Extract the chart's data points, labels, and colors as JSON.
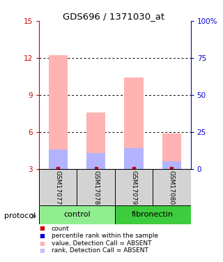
{
  "title": "GDS696 / 1371030_at",
  "samples": [
    "GSM17077",
    "GSM17078",
    "GSM17079",
    "GSM17080"
  ],
  "ylim_left": [
    3,
    15
  ],
  "ylim_right": [
    0,
    100
  ],
  "yticks_left": [
    3,
    6,
    9,
    12,
    15
  ],
  "yticks_right": [
    0,
    25,
    50,
    75,
    100
  ],
  "bar_bottom": 3,
  "pink_bar_tops": [
    12.2,
    7.6,
    10.4,
    5.9
  ],
  "blue_bar_tops": [
    4.6,
    4.3,
    4.7,
    3.6
  ],
  "pink_bar_color": "#ffb3b3",
  "blue_bar_color": "#b3b3ff",
  "red_marker_color": "#cc0000",
  "blue_marker_color": "#0000cc",
  "left_axis_color": "#cc0000",
  "right_axis_color": "#0000cc",
  "control_color": "#90ee90",
  "fibronectin_color": "#3dcc3d",
  "sample_box_color": "#d3d3d3",
  "bar_width": 0.5,
  "legend_items": [
    {
      "label": "count",
      "color": "#cc0000"
    },
    {
      "label": "percentile rank within the sample",
      "color": "#0000cc"
    },
    {
      "label": "value, Detection Call = ABSENT",
      "color": "#ffb3b3"
    },
    {
      "label": "rank, Detection Call = ABSENT",
      "color": "#c0c0ff"
    }
  ]
}
